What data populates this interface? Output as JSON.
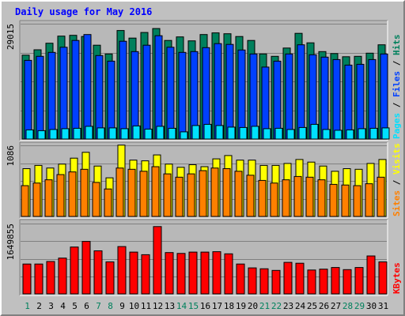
{
  "colors": {
    "background": "#C0C0C0",
    "plot_background": "#B8B8B8",
    "title": "#0000FF",
    "hits": "#00805C",
    "files": "#0040FF",
    "pages": "#00E0FF",
    "visits": "#FFFF00",
    "sites": "#FF8000",
    "kbytes": "#FF0000",
    "weekend_day": "#00805C",
    "weekday": "#000000"
  },
  "chart_data": [
    {
      "type": "bar",
      "panel": "hits-files-pages",
      "title": "Daily usage for May 2016",
      "categories": [
        "1",
        "2",
        "3",
        "4",
        "5",
        "6",
        "7",
        "8",
        "9",
        "10",
        "11",
        "12",
        "13",
        "14",
        "15",
        "16",
        "17",
        "18",
        "19",
        "20",
        "21",
        "22",
        "23",
        "24",
        "25",
        "26",
        "27",
        "28",
        "29",
        "30",
        "31"
      ],
      "weekend_days": [
        1,
        7,
        8,
        14,
        15,
        21,
        22,
        28,
        29
      ],
      "ylabel_parts": [
        {
          "text": "Pages",
          "color": "#00E0FF"
        },
        {
          "text": " / ",
          "color": "#000000"
        },
        {
          "text": "Files",
          "color": "#0040FF"
        },
        {
          "text": " / ",
          "color": "#000000"
        },
        {
          "text": "Hits",
          "color": "#00805C"
        }
      ],
      "max_label": "29015",
      "ylim": [
        0,
        29015
      ],
      "gridlines": true,
      "series": [
        {
          "name": "Hits",
          "color": "#00805C",
          "values": [
            21100,
            22450,
            24100,
            25900,
            26100,
            25800,
            23600,
            21400,
            27300,
            25400,
            26800,
            27800,
            24800,
            25700,
            24700,
            26300,
            26700,
            26500,
            25800,
            24800,
            21400,
            20800,
            22900,
            26600,
            24200,
            22000,
            21500,
            20700,
            20800,
            21600,
            23700
          ]
        },
        {
          "name": "Files",
          "color": "#0040FF",
          "values": [
            19800,
            20800,
            21800,
            23100,
            24800,
            26300,
            21000,
            19600,
            24600,
            22000,
            23600,
            26000,
            23100,
            21800,
            22000,
            23000,
            24000,
            23800,
            22400,
            21400,
            18100,
            19600,
            21400,
            23700,
            21200,
            20600,
            20000,
            18600,
            18800,
            20000,
            21400
          ]
        },
        {
          "name": "Pages",
          "color": "#00E0FF",
          "values": [
            2300,
            2100,
            2400,
            2600,
            2700,
            3200,
            2800,
            2800,
            2600,
            3300,
            2500,
            3200,
            2700,
            1800,
            3400,
            3700,
            3400,
            3000,
            2900,
            3200,
            2600,
            2700,
            2400,
            2900,
            3700,
            2400,
            2200,
            2300,
            2600,
            2700,
            2800
          ]
        }
      ]
    },
    {
      "type": "bar",
      "panel": "visits-sites",
      "categories": [
        "1",
        "2",
        "3",
        "4",
        "5",
        "6",
        "7",
        "8",
        "9",
        "10",
        "11",
        "12",
        "13",
        "14",
        "15",
        "16",
        "17",
        "18",
        "19",
        "20",
        "21",
        "22",
        "23",
        "24",
        "25",
        "26",
        "27",
        "28",
        "29",
        "30",
        "31"
      ],
      "ylabel_parts": [
        {
          "text": "Sites",
          "color": "#FF8000"
        },
        {
          "text": " / ",
          "color": "#000000"
        },
        {
          "text": "Visits",
          "color": "#FFFF00"
        }
      ],
      "max_label": "1086",
      "ylim": [
        0,
        1086
      ],
      "gridlines": true,
      "series": [
        {
          "name": "Visits",
          "color": "#FFFF00",
          "values": [
            730,
            780,
            740,
            800,
            890,
            980,
            770,
            590,
            1090,
            860,
            850,
            940,
            800,
            750,
            790,
            760,
            880,
            930,
            860,
            860,
            780,
            780,
            810,
            870,
            830,
            770,
            690,
            730,
            720,
            810,
            870
          ]
        },
        {
          "name": "Sites",
          "color": "#FF8000",
          "values": [
            470,
            510,
            560,
            640,
            680,
            720,
            520,
            420,
            740,
            720,
            690,
            760,
            650,
            600,
            650,
            700,
            740,
            730,
            690,
            630,
            550,
            510,
            560,
            610,
            600,
            560,
            490,
            480,
            470,
            500,
            600
          ]
        }
      ]
    },
    {
      "type": "bar",
      "panel": "kbytes",
      "categories": [
        "1",
        "2",
        "3",
        "4",
        "5",
        "6",
        "7",
        "8",
        "9",
        "10",
        "11",
        "12",
        "13",
        "14",
        "15",
        "16",
        "17",
        "18",
        "19",
        "20",
        "21",
        "22",
        "23",
        "24",
        "25",
        "26",
        "27",
        "28",
        "29",
        "30",
        "31"
      ],
      "ylabel_parts": [
        {
          "text": "KBytes",
          "color": "#FF0000"
        }
      ],
      "max_label": "1649855",
      "ylim": [
        0,
        1649855
      ],
      "gridlines": true,
      "series": [
        {
          "name": "KBytes",
          "color": "#FF0000",
          "values": [
            700000,
            700000,
            760000,
            840000,
            1100000,
            1230000,
            1010000,
            750000,
            1110000,
            980000,
            920000,
            1580000,
            970000,
            950000,
            980000,
            980000,
            990000,
            940000,
            700000,
            610000,
            590000,
            550000,
            740000,
            720000,
            560000,
            580000,
            620000,
            570000,
            620000,
            890000,
            750000
          ]
        }
      ]
    }
  ]
}
